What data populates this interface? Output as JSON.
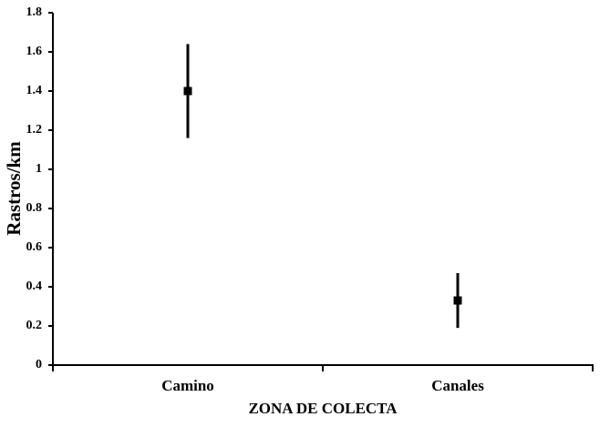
{
  "chart_data": {
    "type": "errorbar",
    "xlabel": "ZONA DE COLECTA",
    "ylabel": "Rastros/km",
    "categories": [
      "Camino",
      "Canales"
    ],
    "values": [
      1.4,
      0.33
    ],
    "errors": [
      0.24,
      0.14
    ],
    "color": "#000000",
    "ylim": [
      0,
      1.8
    ],
    "yticks": [
      0,
      0.2,
      0.4,
      0.6,
      0.8,
      1,
      1.2,
      1.4,
      1.6,
      1.8
    ]
  }
}
